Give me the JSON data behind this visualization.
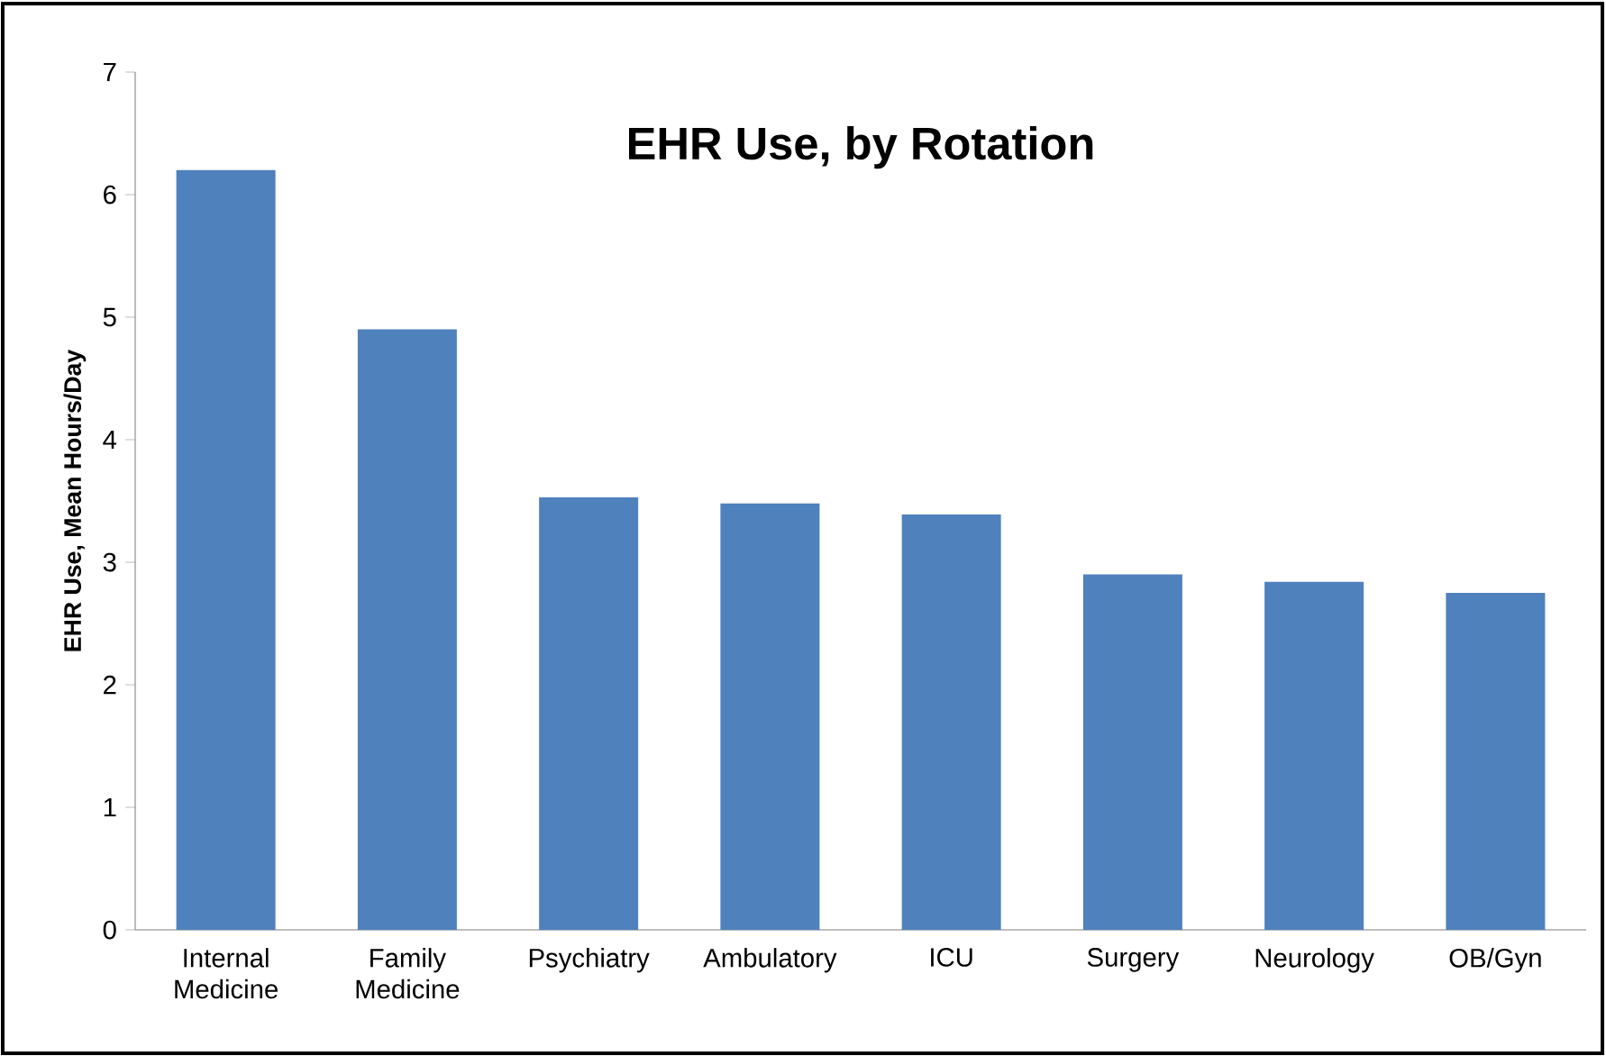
{
  "chart_data": {
    "type": "bar",
    "title": "EHR Use, by Rotation",
    "ylabel": "EHR Use, Mean Hours/Day",
    "categories": [
      "Internal Medicine",
      "Family Medicine",
      "Psychiatry",
      "Ambulatory",
      "ICU",
      "Surgery",
      "Neurology",
      "OB/Gyn"
    ],
    "values": [
      6.2,
      4.9,
      3.53,
      3.48,
      3.39,
      2.9,
      2.84,
      2.75
    ],
    "color": "#4f81bd",
    "ylim": [
      0,
      7
    ],
    "yticks": [
      0,
      1,
      2,
      3,
      4,
      5,
      6,
      7
    ]
  }
}
